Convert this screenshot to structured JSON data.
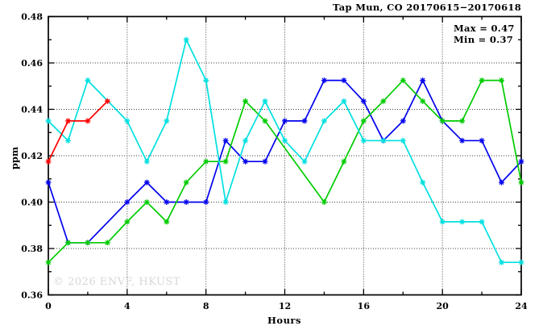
{
  "title": "Tap Mun, CO 20170615−20170618",
  "annotations": {
    "max": "Max = 0.47",
    "min": "Min = 0.37"
  },
  "watermark": "© 2026 ENVF, HKUST",
  "colors": {
    "background": "#ffffff",
    "axis": "#000000",
    "grid": "#3c3c3c",
    "watermark_text": "#d7d7d7",
    "series_red": "#ff0000",
    "series_blue": "#0000ee",
    "series_green": "#00cc00",
    "series_cyan": "#00e0e0"
  },
  "chart_data": {
    "type": "line",
    "title": "Tap Mun, CO 20170615−20170618",
    "xlabel": "Hours",
    "ylabel": "ppm",
    "xlim": [
      0,
      24
    ],
    "ylim": [
      0.36,
      0.48
    ],
    "x_major_ticks": [
      0,
      4,
      8,
      12,
      16,
      20,
      24
    ],
    "x_minor_tick_step": 2,
    "y_major_ticks": [
      0.36,
      0.38,
      0.4,
      0.42,
      0.44,
      0.46,
      0.48
    ],
    "y_minor_tick_step": 0.01,
    "grid": "dotted at major ticks, both axes",
    "legend_position": "none",
    "marker_style": "asterisk",
    "max_annotation": "Max = 0.47",
    "min_annotation": "Min = 0.37",
    "x": [
      0,
      1,
      2,
      3,
      4,
      5,
      6,
      7,
      8,
      9,
      10,
      11,
      12,
      13,
      14,
      15,
      16,
      17,
      18,
      19,
      20,
      21,
      22,
      23,
      24
    ],
    "series": [
      {
        "name": "blue",
        "color": "#0000ee",
        "values": [
          0.4085,
          0.3825,
          0.3825,
          null,
          0.4,
          0.4085,
          0.4,
          0.4,
          0.4,
          0.4265,
          0.4175,
          0.4175,
          0.435,
          0.435,
          0.4525,
          0.4525,
          0.4435,
          0.4265,
          0.435,
          0.4525,
          0.435,
          0.4265,
          0.4265,
          0.4085,
          0.4175
        ]
      },
      {
        "name": "green",
        "color": "#00cc00",
        "values": [
          0.374,
          0.3825,
          0.3825,
          0.3825,
          0.3915,
          0.4,
          0.3915,
          0.4085,
          0.4175,
          0.4175,
          0.4435,
          0.435,
          null,
          null,
          0.4,
          0.4175,
          0.435,
          0.4435,
          0.4525,
          0.4435,
          0.435,
          0.435,
          0.4525,
          0.4525,
          0.4085
        ]
      },
      {
        "name": "cyan",
        "color": "#00e0e0",
        "values": [
          0.435,
          0.4265,
          0.4525,
          null,
          0.435,
          0.4175,
          0.435,
          0.47,
          0.4525,
          0.4,
          0.4265,
          0.4435,
          0.4265,
          0.4175,
          0.435,
          0.4435,
          0.4265,
          0.4265,
          0.4265,
          0.4085,
          0.3915,
          0.3915,
          0.3915,
          0.374,
          0.374
        ]
      },
      {
        "name": "red",
        "color": "#ff0000",
        "values": [
          0.4175,
          0.435,
          0.435,
          0.4435,
          null,
          null,
          null,
          null,
          null,
          null,
          null,
          null,
          null,
          null,
          null,
          null,
          null,
          null,
          null,
          null,
          null,
          null,
          null,
          null,
          null
        ]
      }
    ]
  }
}
